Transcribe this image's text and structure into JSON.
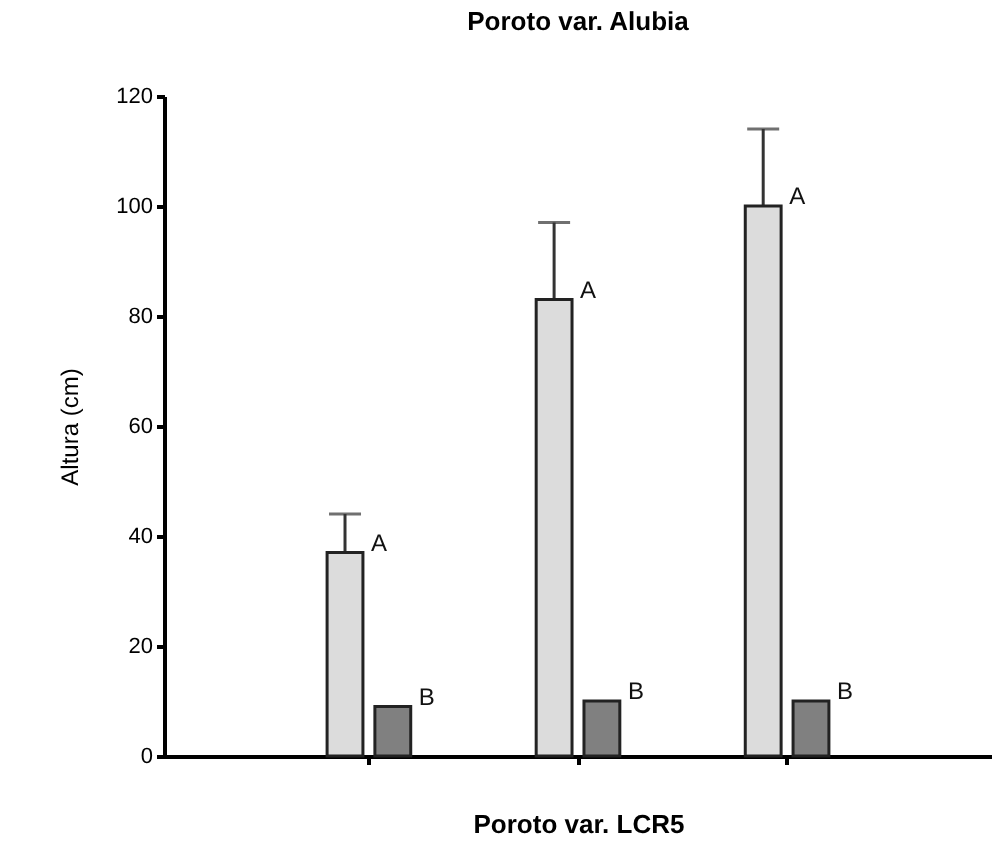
{
  "chart_data": {
    "type": "bar",
    "title": "Poroto var. Alubia",
    "xlabel": "Poroto var. LCR5",
    "ylabel": "Altura (cm)",
    "categories": [
      null,
      null,
      null
    ],
    "series": [
      {
        "color": "#dcdcdc",
        "values": [
          37,
          83,
          100
        ],
        "errors": [
          7,
          14,
          14
        ]
      },
      {
        "color": "#808080",
        "values": [
          9,
          10,
          10
        ],
        "errors": [
          null,
          null,
          null
        ]
      }
    ],
    "annotations": [
      "A",
      "B",
      "A",
      "B",
      "A",
      "B"
    ],
    "ylim": [
      0,
      120
    ],
    "yticks": [
      0,
      20,
      40,
      60,
      80,
      100,
      120
    ],
    "grid": false
  }
}
